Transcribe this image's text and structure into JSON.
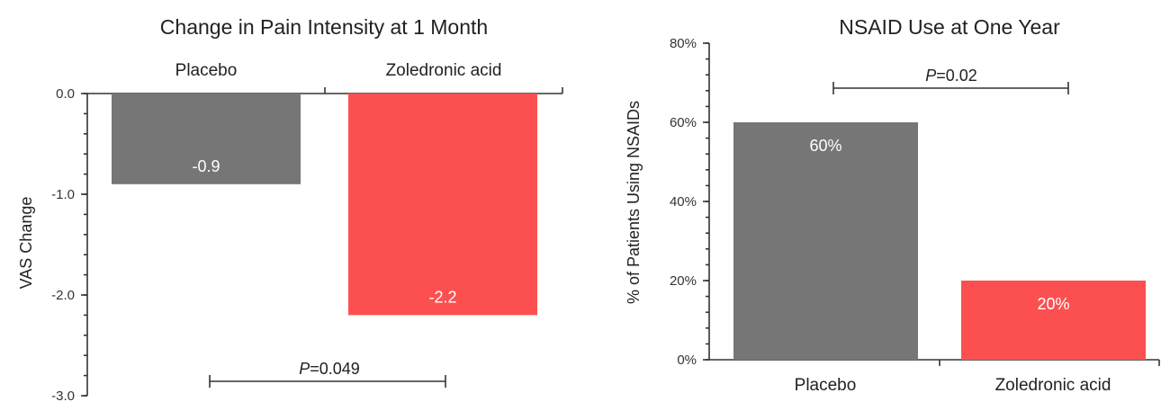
{
  "chart_data": [
    {
      "type": "bar",
      "title": "Change in Pain Intensity at 1 Month",
      "ylabel": "VAS Change",
      "xlabel": "",
      "categories": [
        "Placebo",
        "Zoledronic acid"
      ],
      "values": [
        -0.9,
        -2.2
      ],
      "data_labels": [
        "-0.9",
        "-2.2"
      ],
      "ylim": [
        -3.0,
        0.0
      ],
      "yticks": [
        "0.0",
        "-1.0",
        "-2.0",
        "-3.0"
      ],
      "ytick_values": [
        0.0,
        -1.0,
        -2.0,
        -3.0
      ],
      "bar_colors": [
        "#767676",
        "#fc5050"
      ],
      "annotation": {
        "italic": "P",
        "rest": "=0.049"
      },
      "grid": false
    },
    {
      "type": "bar",
      "title": "NSAID Use at One Year",
      "ylabel": "% of Patients Using NSAIDs",
      "xlabel": "",
      "categories": [
        "Placebo",
        "Zoledronic acid"
      ],
      "values": [
        60,
        20
      ],
      "data_labels": [
        "60%",
        "20%"
      ],
      "ylim": [
        0,
        80
      ],
      "yticks": [
        "0%",
        "20%",
        "40%",
        "60%",
        "80%"
      ],
      "ytick_values": [
        0,
        20,
        40,
        60,
        80
      ],
      "bar_colors": [
        "#767676",
        "#fc5050"
      ],
      "annotation": {
        "italic": "P",
        "rest": "=0.02"
      },
      "grid": false
    }
  ]
}
